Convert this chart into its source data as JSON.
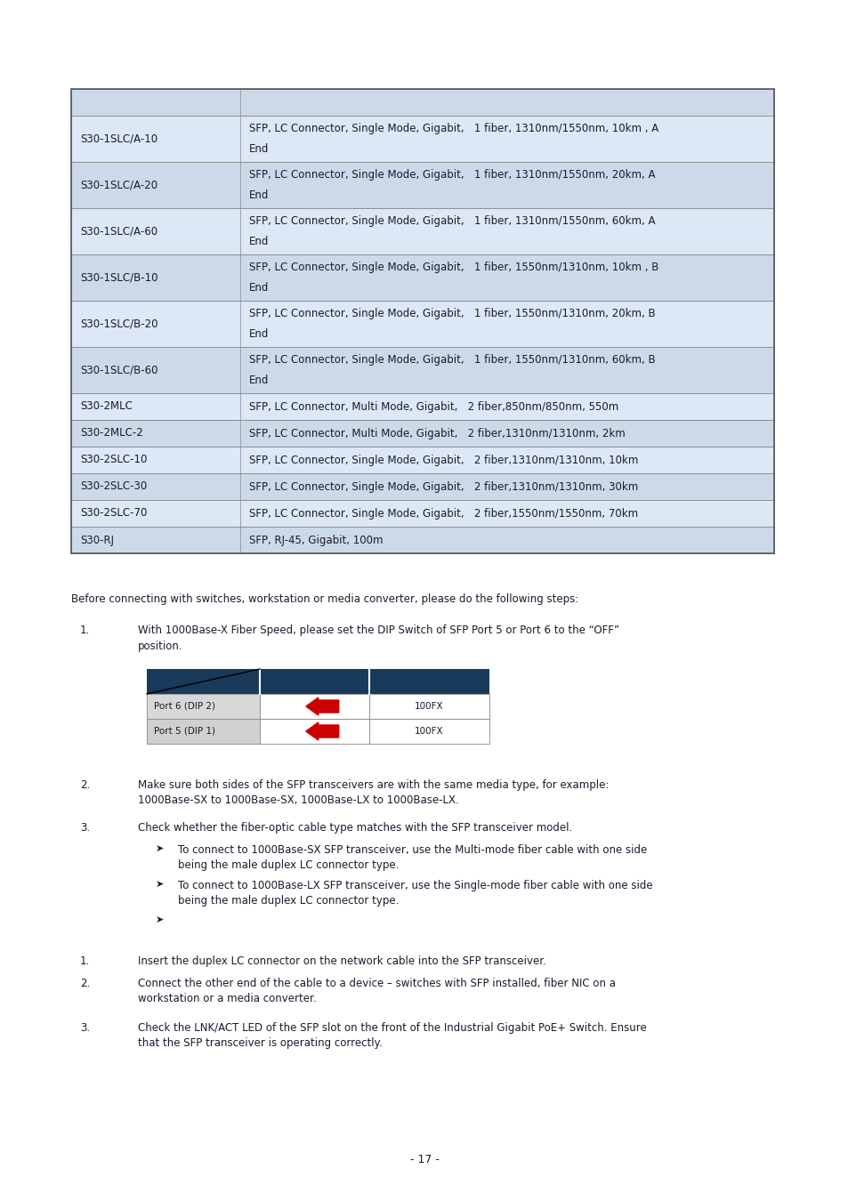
{
  "table_rows": [
    [
      "",
      ""
    ],
    [
      "S30-1SLC/A-10",
      "SFP, LC Connector, Single Mode, Gigabit,   1 fiber, 1310nm/1550nm, 10km , A\nEnd"
    ],
    [
      "S30-1SLC/A-20",
      "SFP, LC Connector, Single Mode, Gigabit,   1 fiber, 1310nm/1550nm, 20km, A\nEnd"
    ],
    [
      "S30-1SLC/A-60",
      "SFP, LC Connector, Single Mode, Gigabit,   1 fiber, 1310nm/1550nm, 60km, A\nEnd"
    ],
    [
      "S30-1SLC/B-10",
      "SFP, LC Connector, Single Mode, Gigabit,   1 fiber, 1550nm/1310nm, 10km , B\nEnd"
    ],
    [
      "S30-1SLC/B-20",
      "SFP, LC Connector, Single Mode, Gigabit,   1 fiber, 1550nm/1310nm, 20km, B\nEnd"
    ],
    [
      "S30-1SLC/B-60",
      "SFP, LC Connector, Single Mode, Gigabit,   1 fiber, 1550nm/1310nm, 60km, B\nEnd"
    ],
    [
      "S30-2MLC",
      "SFP, LC Connector, Multi Mode, Gigabit,   2 fiber,850nm/850nm, 550m"
    ],
    [
      "S30-2MLC-2",
      "SFP, LC Connector, Multi Mode, Gigabit,   2 fiber,1310nm/1310nm, 2km"
    ],
    [
      "S30-2SLC-10",
      "SFP, LC Connector, Single Mode, Gigabit,   2 fiber,1310nm/1310nm, 10km"
    ],
    [
      "S30-2SLC-30",
      "SFP, LC Connector, Single Mode, Gigabit,   2 fiber,1310nm/1310nm, 30km"
    ],
    [
      "S30-2SLC-70",
      "SFP, LC Connector, Single Mode, Gigabit,   2 fiber,1550nm/1550nm, 70km"
    ],
    [
      "S30-RJ",
      "SFP, RJ-45, Gigabit, 100m"
    ]
  ],
  "row_bg_even": "#dce8f5",
  "row_bg_odd": "#ccd9e8",
  "bg_color": "#ffffff",
  "text_color": "#1a1a2e",
  "border_color": "#888888",
  "dip_header_color": "#1a3a5c",
  "page_num": "- 17 -",
  "fig_w": 9.54,
  "fig_h": 13.5,
  "dpi": 100
}
